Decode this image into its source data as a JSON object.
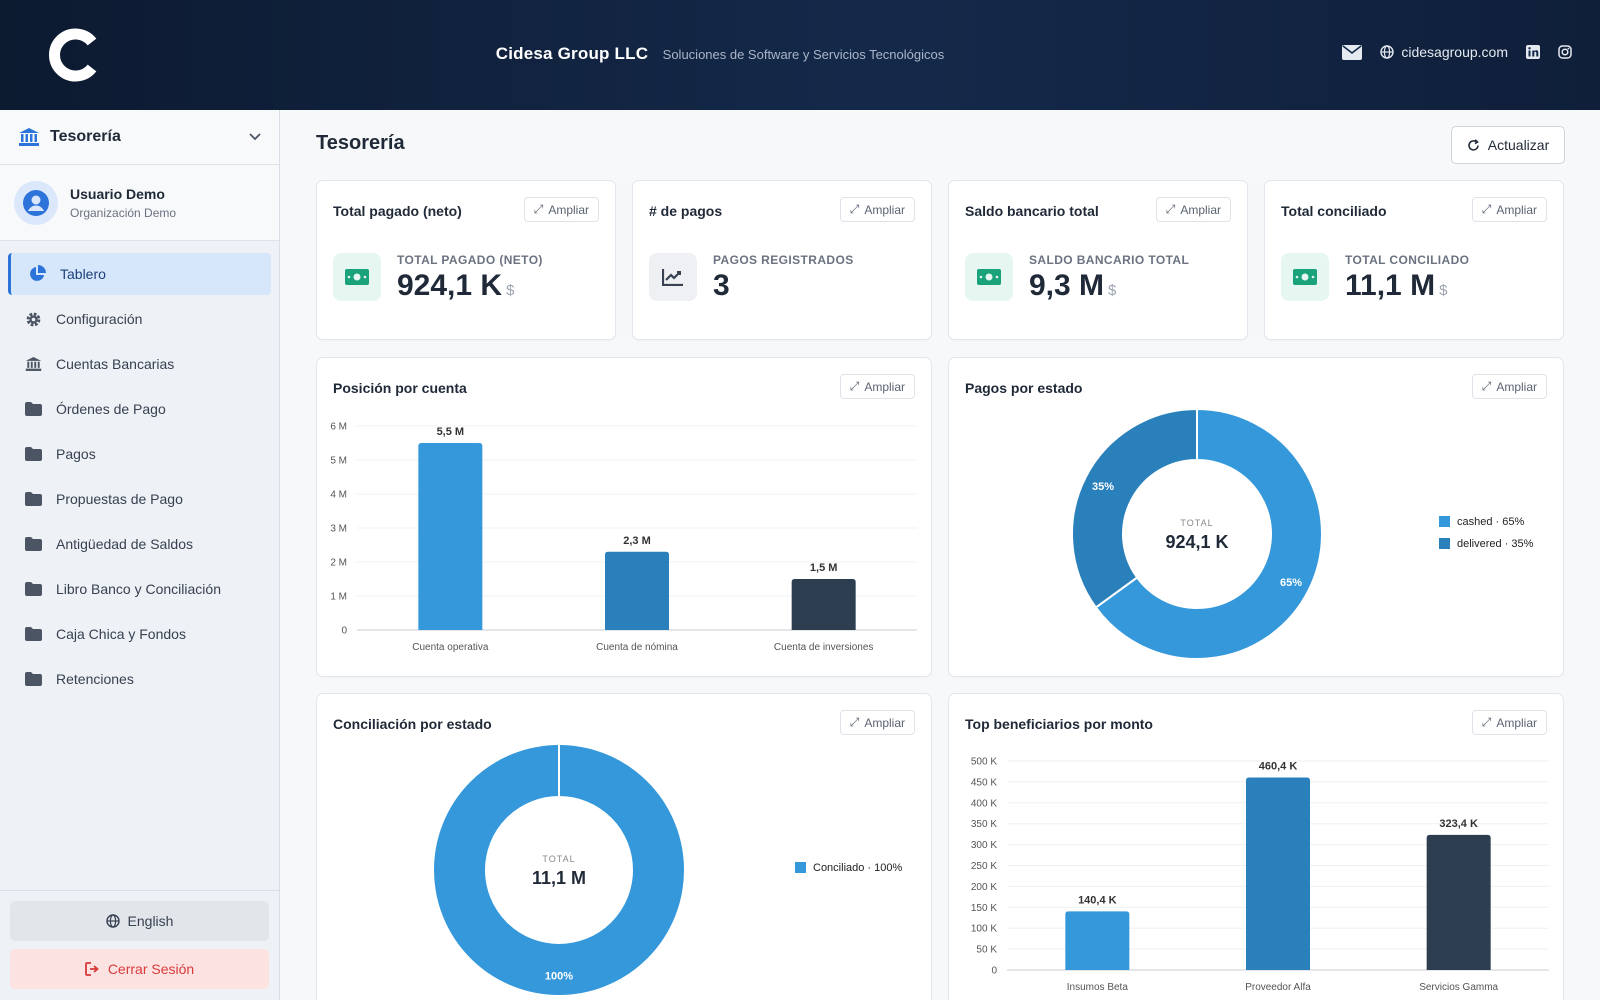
{
  "header": {
    "company": "Cidesa Group LLC",
    "tagline": "Soluciones de Software y Servicios Tecnológicos",
    "website": "cidesagroup.com"
  },
  "sidebar": {
    "module": "Tesorería",
    "user": {
      "name": "Usuario Demo",
      "org": "Organización Demo"
    },
    "items": [
      {
        "label": "Tablero",
        "icon": "pie-chart-icon"
      },
      {
        "label": "Configuración",
        "icon": "gear-icon"
      },
      {
        "label": "Cuentas Bancarias",
        "icon": "bank-icon"
      },
      {
        "label": "Órdenes de Pago",
        "icon": "folder-icon"
      },
      {
        "label": "Pagos",
        "icon": "folder-icon"
      },
      {
        "label": "Propuestas de Pago",
        "icon": "folder-icon"
      },
      {
        "label": "Antigüedad de Saldos",
        "icon": "folder-icon"
      },
      {
        "label": "Libro Banco y Conciliación",
        "icon": "folder-icon"
      },
      {
        "label": "Caja Chica y Fondos",
        "icon": "folder-icon"
      },
      {
        "label": "Retenciones",
        "icon": "folder-icon"
      }
    ],
    "language_label": "English",
    "logout_label": "Cerrar Sesión"
  },
  "main": {
    "title": "Tesorería",
    "refresh_label": "Actualizar",
    "expand_label": "Ampliar"
  },
  "kpis": [
    {
      "title": "Total pagado (neto)",
      "label": "TOTAL PAGADO (NETO)",
      "value": "924,1 K",
      "currency": "$",
      "icon": "money-icon"
    },
    {
      "title": "# de pagos",
      "label": "PAGOS REGISTRADOS",
      "value": "3",
      "currency": "",
      "icon": "line-chart-icon"
    },
    {
      "title": "Saldo bancario total",
      "label": "SALDO BANCARIO TOTAL",
      "value": "9,3 M",
      "currency": "$",
      "icon": "money-icon"
    },
    {
      "title": "Total conciliado",
      "label": "TOTAL CONCILIADO",
      "value": "11,1 M",
      "currency": "$",
      "icon": "money-icon"
    }
  ],
  "colors": {
    "blue": "#3498db",
    "mid_blue": "#2a80bb",
    "dark": "#2c3e50",
    "accent": "#2d74da",
    "green": "#1aa37a"
  },
  "chart_data": [
    {
      "type": "bar",
      "title": "Posición por cuenta",
      "categories": [
        "Cuenta operativa",
        "Cuenta de nómina",
        "Cuenta de inversiones"
      ],
      "values": [
        5.5,
        2.3,
        1.5
      ],
      "value_labels": [
        "5,5 M",
        "2,3 M",
        "1,5 M"
      ],
      "yticks": [
        "0",
        "1 M",
        "2 M",
        "3 M",
        "4 M",
        "5 M",
        "6 M"
      ],
      "ylim": [
        0,
        6
      ],
      "unit": "M"
    },
    {
      "type": "pie",
      "title": "Pagos por estado",
      "center_label": "TOTAL",
      "center_value": "924,1 K",
      "slices": [
        {
          "name": "cashed",
          "value": 65,
          "legend": "cashed · 65%",
          "label": "65%"
        },
        {
          "name": "delivered",
          "value": 35,
          "legend": "delivered · 35%",
          "label": "35%"
        }
      ]
    },
    {
      "type": "pie",
      "title": "Conciliación por estado",
      "center_label": "TOTAL",
      "center_value": "11,1 M",
      "slices": [
        {
          "name": "Conciliado",
          "value": 100,
          "legend": "Conciliado · 100%",
          "label": "100%"
        }
      ]
    },
    {
      "type": "bar",
      "title": "Top beneficiarios por monto",
      "categories": [
        "Insumos Beta",
        "Proveedor Alfa",
        "Servicios Gamma"
      ],
      "values": [
        140.4,
        460.4,
        323.4
      ],
      "value_labels": [
        "140,4 K",
        "460,4 K",
        "323,4 K"
      ],
      "yticks": [
        "0",
        "50 K",
        "100 K",
        "150 K",
        "200 K",
        "250 K",
        "300 K",
        "350 K",
        "400 K",
        "450 K",
        "500 K"
      ],
      "ylim": [
        0,
        500
      ],
      "unit": "K"
    }
  ]
}
